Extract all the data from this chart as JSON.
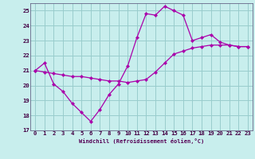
{
  "xlabel": "Windchill (Refroidissement éolien,°C)",
  "bg_color": "#c8eeed",
  "grid_color": "#99cccc",
  "line_color": "#aa00aa",
  "xlim": [
    -0.5,
    23.5
  ],
  "ylim": [
    17.0,
    25.5
  ],
  "xticks": [
    0,
    1,
    2,
    3,
    4,
    5,
    6,
    7,
    8,
    9,
    10,
    11,
    12,
    13,
    14,
    15,
    16,
    17,
    18,
    19,
    20,
    21,
    22,
    23
  ],
  "yticks": [
    17,
    18,
    19,
    20,
    21,
    22,
    23,
    24,
    25
  ],
  "line1_x": [
    0,
    1,
    2,
    3,
    4,
    5,
    6,
    7,
    8,
    9,
    10,
    11,
    12,
    13,
    14,
    15,
    16,
    17,
    18,
    19,
    20,
    21,
    22,
    23
  ],
  "line1_y": [
    21.0,
    21.5,
    20.1,
    19.6,
    18.8,
    18.2,
    17.6,
    18.4,
    19.4,
    20.1,
    21.3,
    23.2,
    24.8,
    24.7,
    25.3,
    25.0,
    24.7,
    23.0,
    23.2,
    23.4,
    22.9,
    22.7,
    22.6,
    22.6
  ],
  "line2_x": [
    0,
    1,
    2,
    3,
    4,
    5,
    6,
    7,
    8,
    9,
    10,
    11,
    12,
    13,
    14,
    15,
    16,
    17,
    18,
    19,
    20,
    21,
    22,
    23
  ],
  "line2_y": [
    21.0,
    20.9,
    20.8,
    20.7,
    20.6,
    20.6,
    20.5,
    20.4,
    20.3,
    20.3,
    20.2,
    20.3,
    20.4,
    20.9,
    21.5,
    22.1,
    22.3,
    22.5,
    22.6,
    22.7,
    22.7,
    22.7,
    22.6,
    22.6
  ]
}
